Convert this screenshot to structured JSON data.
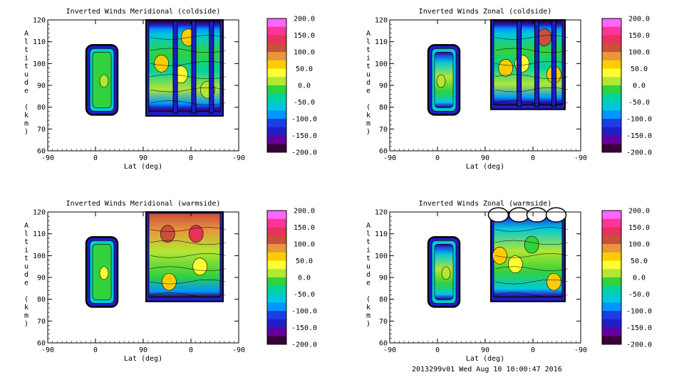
{
  "footer": "2013299v01 Wed Aug 10 10:00:47 2016",
  "colorbar": {
    "ticks": [
      "200.0",
      "150.0",
      "100.0",
      "50.0",
      "0.0",
      "-50.0",
      "-100.0",
      "-150.0",
      "-200.0"
    ],
    "colors": [
      "#ff66ff",
      "#ff3399",
      "#e8325a",
      "#c8503c",
      "#e8963c",
      "#ffcc00",
      "#ffff33",
      "#b4e632",
      "#32d23c",
      "#00d2a0",
      "#00c8dc",
      "#0096ff",
      "#1e3ce6",
      "#1e1ec8",
      "#6400a0",
      "#3c003c"
    ]
  },
  "chart_data": [
    {
      "type": "heatmap",
      "title": "Inverted Winds Meridional (coldside)",
      "xlabel": "Lat (deg)",
      "ylabel": "Altitude (km)",
      "xticks": [
        "-90",
        "0",
        "90",
        "0",
        "-90"
      ],
      "yticks": [
        "60",
        "70",
        "80",
        "90",
        "100",
        "110",
        "120"
      ],
      "ylim": [
        60,
        120
      ],
      "zlim": [
        -200,
        200
      ],
      "panel": "top-left"
    },
    {
      "type": "heatmap",
      "title": "Inverted Winds Zonal (coldside)",
      "xlabel": "Lat (deg)",
      "ylabel": "Altitude (km)",
      "xticks": [
        "-90",
        "0",
        "90",
        "0",
        "-90"
      ],
      "yticks": [
        "60",
        "70",
        "80",
        "90",
        "100",
        "110",
        "120"
      ],
      "ylim": [
        60,
        120
      ],
      "zlim": [
        -200,
        200
      ],
      "panel": "top-right"
    },
    {
      "type": "heatmap",
      "title": "Inverted Winds Meridional (warmside)",
      "xlabel": "Lat (deg)",
      "ylabel": "Altitude (km)",
      "xticks": [
        "-90",
        "0",
        "90",
        "0",
        "-90"
      ],
      "yticks": [
        "60",
        "70",
        "80",
        "90",
        "100",
        "110",
        "120"
      ],
      "ylim": [
        60,
        120
      ],
      "zlim": [
        -200,
        200
      ],
      "panel": "bottom-left"
    },
    {
      "type": "heatmap",
      "title": "Inverted Winds Zonal (warmside)",
      "xlabel": "Lat (deg)",
      "ylabel": "Altitude (km)",
      "xticks": [
        "-90",
        "0",
        "90",
        "0",
        "-90"
      ],
      "yticks": [
        "60",
        "70",
        "80",
        "90",
        "100",
        "110",
        "120"
      ],
      "ylim": [
        60,
        120
      ],
      "zlim": [
        -200,
        200
      ],
      "panel": "bottom-right"
    }
  ]
}
